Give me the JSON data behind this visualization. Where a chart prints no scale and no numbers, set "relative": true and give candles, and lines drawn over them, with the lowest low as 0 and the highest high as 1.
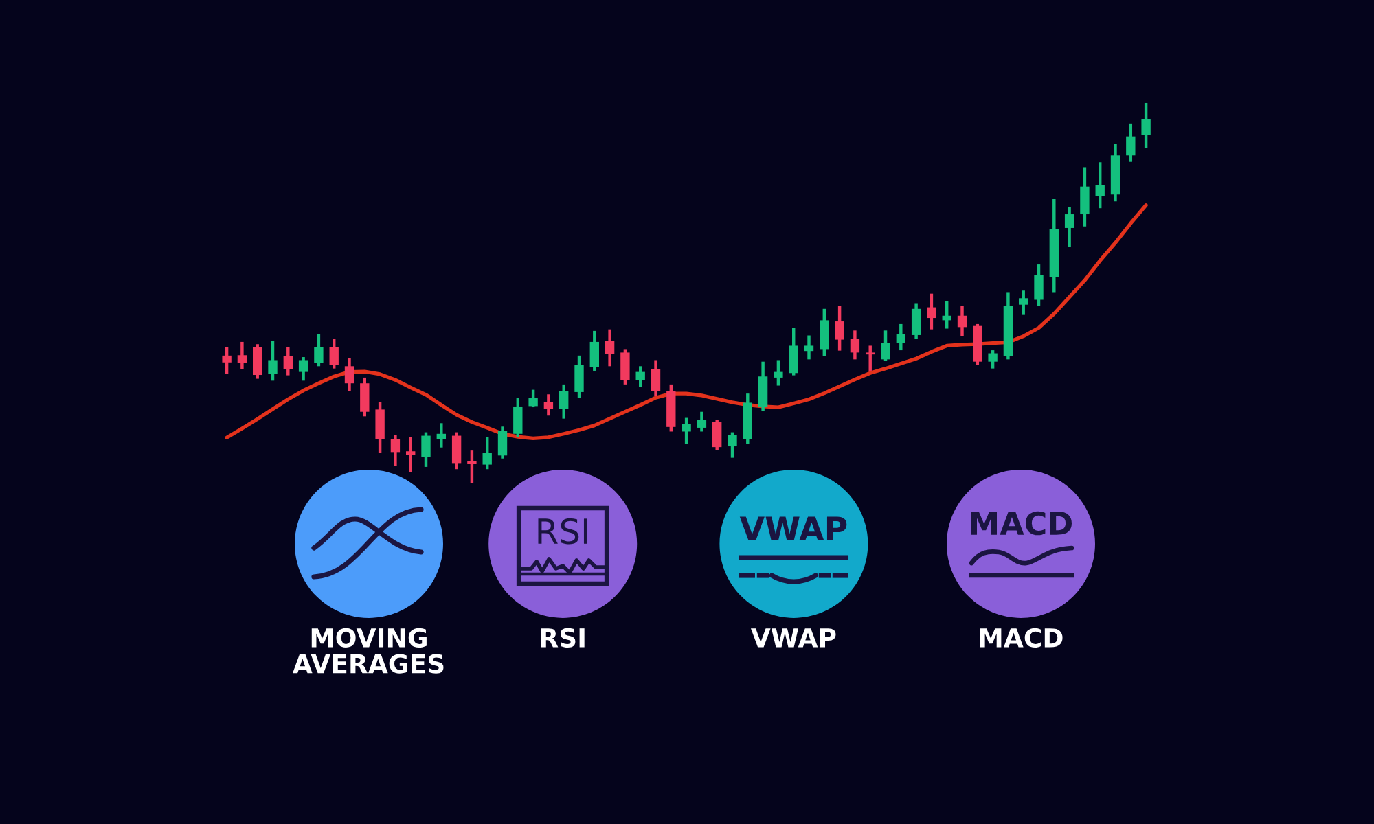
{
  "chart_data": {
    "type": "candlestick",
    "relative": true,
    "categories": [
      null,
      null,
      null,
      null,
      null,
      null,
      null,
      null,
      null,
      null,
      null,
      null,
      null,
      null,
      null,
      null,
      null,
      null,
      null,
      null,
      null,
      null,
      null,
      null,
      null,
      null,
      null,
      null,
      null,
      null,
      null,
      null,
      null,
      null,
      null,
      null,
      null,
      null,
      null,
      null,
      null,
      null,
      null,
      null,
      null,
      null,
      null,
      null,
      null,
      null,
      null,
      null,
      null,
      null,
      null,
      null,
      null,
      null,
      null,
      null,
      null
    ],
    "series": [
      {
        "type": "line",
        "color": "#e3321c",
        "values": [
          0.119,
          0.143,
          0.168,
          0.194,
          0.22,
          0.243,
          0.262,
          0.28,
          0.292,
          0.293,
          0.286,
          0.271,
          0.251,
          0.232,
          0.205,
          0.179,
          0.16,
          0.145,
          0.129,
          0.121,
          0.117,
          0.12,
          0.129,
          0.139,
          0.151,
          0.169,
          0.187,
          0.205,
          0.224,
          0.235,
          0.235,
          0.23,
          0.221,
          0.212,
          0.205,
          0.201,
          0.199,
          0.209,
          0.22,
          0.236,
          0.254,
          0.272,
          0.289,
          0.301,
          0.314,
          0.327,
          0.345,
          0.361,
          0.364,
          0.365,
          0.368,
          0.37,
          0.386,
          0.408,
          0.445,
          0.489,
          0.533,
          0.585,
          0.632,
          0.683,
          0.731
        ]
      },
      {
        "ohlc": [
          [
            0.335,
            0.358,
            0.286,
            0.317
          ],
          [
            0.336,
            0.371,
            0.299,
            0.316
          ],
          [
            0.357,
            0.365,
            0.274,
            0.284
          ],
          [
            0.286,
            0.374,
            0.269,
            0.323
          ],
          [
            0.334,
            0.358,
            0.283,
            0.299
          ],
          [
            0.292,
            0.331,
            0.269,
            0.323
          ],
          [
            0.316,
            0.392,
            0.307,
            0.358
          ],
          [
            0.358,
            0.379,
            0.301,
            0.31
          ],
          [
            0.307,
            0.329,
            0.241,
            0.262
          ],
          [
            0.262,
            0.277,
            0.175,
            0.187
          ],
          [
            0.193,
            0.213,
            0.078,
            0.115
          ],
          [
            0.115,
            0.126,
            0.045,
            0.081
          ],
          [
            0.083,
            0.121,
            0.028,
            0.074
          ],
          [
            0.069,
            0.133,
            0.042,
            0.124
          ],
          [
            0.115,
            0.157,
            0.093,
            0.129
          ],
          [
            0.124,
            0.133,
            0.036,
            0.052
          ],
          [
            0.057,
            0.085,
            0,
            0.05
          ],
          [
            0.048,
            0.121,
            0.036,
            0.078
          ],
          [
            0.072,
            0.148,
            0.064,
            0.136
          ],
          [
            0.129,
            0.223,
            0.121,
            0.201
          ],
          [
            0.202,
            0.245,
            0.199,
            0.223
          ],
          [
            0.213,
            0.233,
            0.177,
            0.194
          ],
          [
            0.195,
            0.259,
            0.169,
            0.241
          ],
          [
            0.239,
            0.335,
            0.223,
            0.311
          ],
          [
            0.304,
            0.4,
            0.295,
            0.371
          ],
          [
            0.374,
            0.404,
            0.307,
            0.34
          ],
          [
            0.343,
            0.352,
            0.259,
            0.271
          ],
          [
            0.271,
            0.307,
            0.253,
            0.292
          ],
          [
            0.299,
            0.323,
            0.229,
            0.241
          ],
          [
            0.241,
            0.259,
            0.135,
            0.147
          ],
          [
            0.135,
            0.171,
            0.103,
            0.154
          ],
          [
            0.145,
            0.187,
            0.135,
            0.166
          ],
          [
            0.16,
            0.166,
            0.087,
            0.094
          ],
          [
            0.096,
            0.133,
            0.066,
            0.126
          ],
          [
            0.115,
            0.235,
            0.103,
            0.211
          ],
          [
            0.199,
            0.319,
            0.19,
            0.28
          ],
          [
            0.277,
            0.323,
            0.256,
            0.292
          ],
          [
            0.289,
            0.407,
            0.283,
            0.361
          ],
          [
            0.347,
            0.388,
            0.325,
            0.361
          ],
          [
            0.352,
            0.458,
            0.334,
            0.428
          ],
          [
            0.425,
            0.465,
            0.348,
            0.377
          ],
          [
            0.379,
            0.401,
            0.325,
            0.343
          ],
          [
            0.343,
            0.361,
            0.295,
            0.338
          ],
          [
            0.325,
            0.401,
            0.322,
            0.368
          ],
          [
            0.368,
            0.418,
            0.349,
            0.392
          ],
          [
            0.389,
            0.473,
            0.379,
            0.458
          ],
          [
            0.462,
            0.498,
            0.404,
            0.434
          ],
          [
            0.428,
            0.478,
            0.406,
            0.44
          ],
          [
            0.44,
            0.466,
            0.386,
            0.41
          ],
          [
            0.413,
            0.418,
            0.31,
            0.319
          ],
          [
            0.319,
            0.349,
            0.301,
            0.341
          ],
          [
            0.334,
            0.502,
            0.325,
            0.466
          ],
          [
            0.469,
            0.506,
            0.442,
            0.486
          ],
          [
            0.482,
            0.575,
            0.466,
            0.548
          ],
          [
            0.542,
            0.747,
            0.502,
            0.669
          ],
          [
            0.671,
            0.726,
            0.621,
            0.707
          ],
          [
            0.707,
            0.831,
            0.675,
            0.78
          ],
          [
            0.755,
            0.844,
            0.723,
            0.783
          ],
          [
            0.759,
            0.892,
            0.741,
            0.862
          ],
          [
            0.862,
            0.946,
            0.845,
            0.912
          ],
          [
            0.916,
            1,
            0.881,
            0.957
          ]
        ],
        "colors": [
          "#f23a5e",
          "#f23a5e",
          "#f23a5e",
          "#14c07e",
          "#f23a5e",
          "#14c07e",
          "#14c07e",
          "#f23a5e",
          "#f23a5e",
          "#f23a5e",
          "#f23a5e",
          "#f23a5e",
          "#f23a5e",
          "#14c07e",
          "#14c07e",
          "#f23a5e",
          "#f23a5e",
          "#14c07e",
          "#14c07e",
          "#14c07e",
          "#14c07e",
          "#f23a5e",
          "#14c07e",
          "#14c07e",
          "#14c07e",
          "#f23a5e",
          "#f23a5e",
          "#14c07e",
          "#f23a5e",
          "#f23a5e",
          "#14c07e",
          "#14c07e",
          "#f23a5e",
          "#14c07e",
          "#14c07e",
          "#14c07e",
          "#14c07e",
          "#14c07e",
          "#14c07e",
          "#14c07e",
          "#f23a5e",
          "#f23a5e",
          "#f23a5e",
          "#14c07e",
          "#14c07e",
          "#14c07e",
          "#f23a5e",
          "#14c07e",
          "#f23a5e",
          "#f23a5e",
          "#14c07e",
          "#14c07e",
          "#14c07e",
          "#14c07e",
          "#14c07e",
          "#14c07e",
          "#14c07e",
          "#14c07e",
          "#14c07e",
          "#14c07e",
          "#14c07e"
        ]
      }
    ],
    "annotations": [
      "MOVING\nAVERAGES",
      "RSI",
      "VWAP",
      "MACD"
    ]
  }
}
